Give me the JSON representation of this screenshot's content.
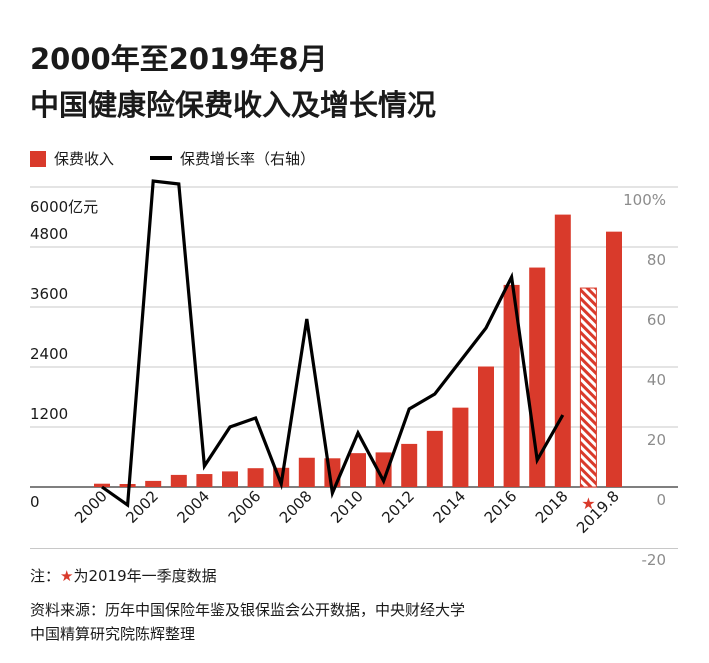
{
  "title_line1": "2000年至2019年8月",
  "title_line2": "中国健康险保费收入及增长情况",
  "legend": {
    "bar_label": "保费收入",
    "line_label": "保费增长率（右轴）"
  },
  "colors": {
    "bar": "#d93a2b",
    "line": "#000000",
    "grid": "#c8c8c8",
    "right_axis_text": "#8c8c8c"
  },
  "left_axis": {
    "top_label": "6000亿元",
    "ticks": [
      "4800",
      "3600",
      "2400",
      "1200",
      "0"
    ]
  },
  "right_axis": {
    "ticks": [
      "100%",
      "80",
      "60",
      "40",
      "20",
      "0",
      "-20"
    ]
  },
  "x_tick_labels": [
    "2000",
    "2002",
    "2004",
    "2006",
    "2008",
    "2010",
    "2012",
    "2014",
    "2016",
    "2018",
    "2019.8"
  ],
  "chart_data": {
    "type": "bar",
    "categories": [
      "2000",
      "2001",
      "2002",
      "2003",
      "2004",
      "2005",
      "2006",
      "2007",
      "2008",
      "2009",
      "2010",
      "2011",
      "2012",
      "2013",
      "2014",
      "2015",
      "2016",
      "2017",
      "2018",
      "2019Q1",
      "2019.8"
    ],
    "series": [
      {
        "name": "保费收入",
        "type": "bar",
        "axis": "left",
        "values": [
          66,
          60,
          122,
          242,
          259,
          312,
          376,
          384,
          585,
          574,
          677,
          692,
          862,
          1123,
          1587,
          2410,
          4042,
          4389,
          5448,
          3979,
          5107
        ]
      },
      {
        "name": "保费增长率（右轴）",
        "type": "line",
        "axis": "right",
        "values": [
          0,
          -6,
          102,
          101,
          7,
          20,
          23,
          1,
          56,
          -2,
          18,
          2,
          26,
          31,
          42,
          53,
          70,
          9,
          24,
          null,
          null
        ]
      }
    ],
    "left_ylim": [
      0,
      6000
    ],
    "right_ylim": [
      -20,
      100
    ],
    "highlighted_category": "2019Q1"
  },
  "footnote": {
    "prefix": "注：",
    "star": "★",
    "text": "为2019年一季度数据"
  },
  "source_line1": "资料来源：历年中国保险年鉴及银保监会公开数据，中央财经大学",
  "source_line2": "中国精算研究院陈辉整理"
}
